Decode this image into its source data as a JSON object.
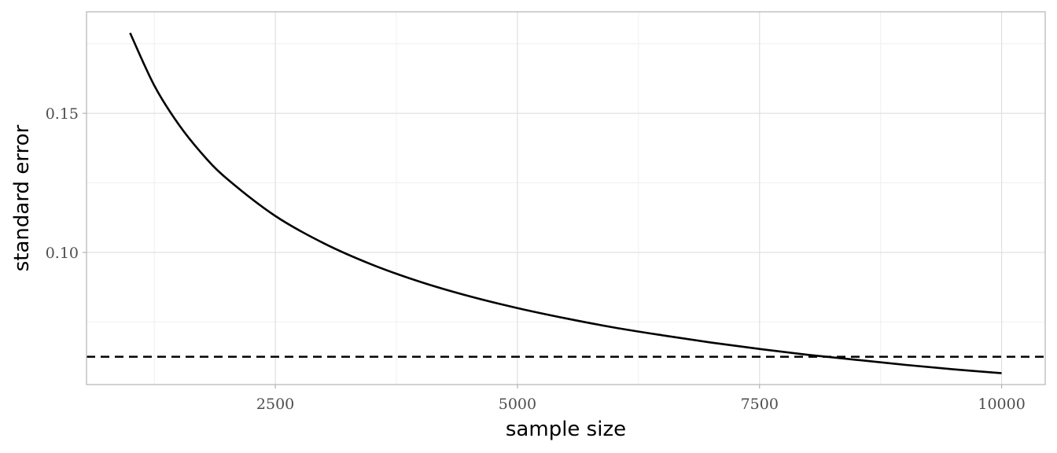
{
  "chart_data": {
    "type": "line",
    "title": "",
    "xlabel": "sample size",
    "ylabel": "standard error",
    "xlim": [
      550,
      10450
    ],
    "ylim": [
      0.0525,
      0.1865
    ],
    "x_ticks": [
      2500,
      5000,
      7500,
      10000
    ],
    "x_tick_labels": [
      "2500",
      "5000",
      "7500",
      "10000"
    ],
    "x_minor_ticks": [
      1250,
      3750,
      6250,
      8750
    ],
    "y_ticks": [
      0.1,
      0.15
    ],
    "y_tick_labels": [
      "0.10",
      "0.15"
    ],
    "y_minor_ticks": [
      0.075,
      0.125,
      0.175
    ],
    "grid": true,
    "series": [
      {
        "style": "solid",
        "color": "#000000",
        "x": [
          1000,
          1250,
          1500,
          1750,
          2000,
          2500,
          3000,
          3500,
          4000,
          4500,
          5000,
          5500,
          6000,
          6500,
          7000,
          7500,
          8000,
          8500,
          9000,
          9500,
          10000
        ],
        "y": [
          0.1789,
          0.16,
          0.1461,
          0.1352,
          0.1265,
          0.1131,
          0.1033,
          0.0956,
          0.0894,
          0.0843,
          0.08,
          0.0763,
          0.073,
          0.0702,
          0.0676,
          0.0653,
          0.0632,
          0.0614,
          0.0596,
          0.058,
          0.0566
        ]
      }
    ],
    "reference_lines": [
      {
        "orientation": "horizontal",
        "y": 0.0625,
        "style": "dashed",
        "color": "#000000"
      }
    ],
    "colors": {
      "grid_major": "#e0e0e0",
      "grid_minor": "#f0f0f0",
      "panel_border": "#b3b3b3",
      "tick_text": "#4d4d4d"
    }
  }
}
